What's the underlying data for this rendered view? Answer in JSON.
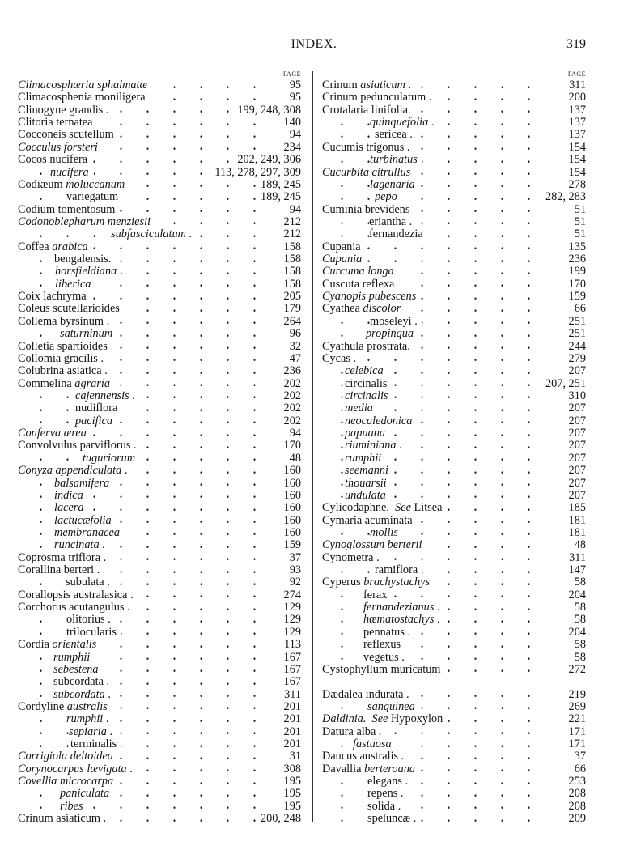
{
  "header": {
    "title": "INDEX.",
    "page_number": "319"
  },
  "columns": [
    {
      "page_label": "PAGE",
      "entries": [
        {
          "s": [
            {
              "t": "Climacosphæria sphalmatæ",
              "i": true
            }
          ],
          "page": "95"
        },
        {
          "s": [
            {
              "t": "Climacosphenia moniligera"
            }
          ],
          "page": "95"
        },
        {
          "s": [
            {
              "t": "Clinogyne grandis ."
            }
          ],
          "page": "199, 248, 308"
        },
        {
          "s": [
            {
              "t": "Clitoria ternatea"
            }
          ],
          "page": "140"
        },
        {
          "s": [
            {
              "t": "Cocconeis scutellum"
            }
          ],
          "page": "94"
        },
        {
          "s": [
            {
              "t": "Cocculus forsteri",
              "i": true
            }
          ],
          "page": "234"
        },
        {
          "s": [
            {
              "t": "Cocos nucifera"
            }
          ],
          "page": "202, 249, 306"
        },
        {
          "s": [
            {
              "t": "nucifera",
              "i": true
            }
          ],
          "page": "113, 278, 297, 309"
        },
        {
          "s": [
            {
              "t": "Codiæum "
            },
            {
              "t": "moluccanum",
              "i": true
            }
          ],
          "page": "189, 245"
        },
        {
          "s": [
            {
              "t": "variegatum"
            }
          ],
          "page": "189, 245"
        },
        {
          "s": [
            {
              "t": "Codium tomentosum"
            }
          ],
          "page": "94"
        },
        {
          "s": [
            {
              "t": "Codonoblepharum menziesii",
              "i": true
            }
          ],
          "page": "212"
        },
        {
          "s": [
            {
              "t": "subfasciculatum",
              "i": true
            },
            {
              "t": " ."
            }
          ],
          "page": "212"
        },
        {
          "s": [
            {
              "t": "Coffea "
            },
            {
              "t": "arabica",
              "i": true
            }
          ],
          "page": "158"
        },
        {
          "s": [
            {
              "t": "bengalensis."
            }
          ],
          "page": "158"
        },
        {
          "s": [
            {
              "t": "horsfieldiana",
              "i": true
            }
          ],
          "page": "158"
        },
        {
          "s": [
            {
              "t": "liberica",
              "i": true
            }
          ],
          "page": "158"
        },
        {
          "s": [
            {
              "t": "Coix lachryma"
            }
          ],
          "page": "205"
        },
        {
          "s": [
            {
              "t": "Coleus scutellarioides"
            }
          ],
          "page": "179"
        },
        {
          "s": [
            {
              "t": "Collema byrsinum ."
            }
          ],
          "page": "264"
        },
        {
          "s": [
            {
              "t": "saturninum",
              "i": true
            }
          ],
          "page": "96"
        },
        {
          "s": [
            {
              "t": "Colletia spartioides"
            }
          ],
          "page": "32"
        },
        {
          "s": [
            {
              "t": "Collomia gracilis ."
            }
          ],
          "page": "47"
        },
        {
          "s": [
            {
              "t": "Colubrina asiatica ."
            }
          ],
          "page": "236"
        },
        {
          "s": [
            {
              "t": "Commelina "
            },
            {
              "t": "agraria",
              "i": true
            }
          ],
          "page": "202"
        },
        {
          "s": [
            {
              "t": "cajennensis",
              "i": true
            },
            {
              "t": " ."
            }
          ],
          "page": "202"
        },
        {
          "s": [
            {
              "t": "nudiflora"
            }
          ],
          "page": "202"
        },
        {
          "s": [
            {
              "t": "pacifica",
              "i": true
            }
          ],
          "page": "202"
        },
        {
          "s": [
            {
              "t": "Conferva ærea",
              "i": true
            }
          ],
          "page": "94"
        },
        {
          "s": [
            {
              "t": "Convolvulus parviflorus ."
            }
          ],
          "page": "170"
        },
        {
          "s": [
            {
              "t": "tuguriorum",
              "i": true
            }
          ],
          "page": "48"
        },
        {
          "s": [
            {
              "t": "Conyza appendiculata",
              "i": true
            },
            {
              "t": " ."
            }
          ],
          "page": "160"
        },
        {
          "s": [
            {
              "t": "balsamifera",
              "i": true
            }
          ],
          "page": "160"
        },
        {
          "s": [
            {
              "t": "indica",
              "i": true
            }
          ],
          "page": "160"
        },
        {
          "s": [
            {
              "t": "lacera",
              "i": true
            }
          ],
          "page": "160"
        },
        {
          "s": [
            {
              "t": "lactucæfolia",
              "i": true
            }
          ],
          "page": "160"
        },
        {
          "s": [
            {
              "t": "membranacea",
              "i": true
            }
          ],
          "page": "160"
        },
        {
          "s": [
            {
              "t": "runcinata",
              "i": true
            },
            {
              "t": " ."
            }
          ],
          "page": "159"
        },
        {
          "s": [
            {
              "t": "Coprosma triflora ."
            }
          ],
          "page": "37"
        },
        {
          "s": [
            {
              "t": "Corallina berteri ."
            }
          ],
          "page": "93"
        },
        {
          "s": [
            {
              "t": "subulata ."
            }
          ],
          "page": "92"
        },
        {
          "s": [
            {
              "t": "Corallopsis australasica ."
            }
          ],
          "page": "274"
        },
        {
          "s": [
            {
              "t": "Corchorus acutangulus ."
            }
          ],
          "page": "129"
        },
        {
          "s": [
            {
              "t": "olitorius ."
            }
          ],
          "page": "129"
        },
        {
          "s": [
            {
              "t": "trilocularis"
            }
          ],
          "page": "129"
        },
        {
          "s": [
            {
              "t": "Cordia "
            },
            {
              "t": "orientalis",
              "i": true
            }
          ],
          "page": "113"
        },
        {
          "s": [
            {
              "t": "rumphii",
              "i": true
            }
          ],
          "page": "167"
        },
        {
          "s": [
            {
              "t": "sebestena",
              "i": true
            }
          ],
          "page": "167"
        },
        {
          "s": [
            {
              "t": "subcordata ."
            }
          ],
          "page": "167"
        },
        {
          "s": [
            {
              "t": "subcordata",
              "i": true
            },
            {
              "t": " ."
            }
          ],
          "page": "311"
        },
        {
          "s": [
            {
              "t": "Cordyline "
            },
            {
              "t": "australis",
              "i": true
            }
          ],
          "page": "201"
        },
        {
          "s": [
            {
              "t": "rumphii",
              "i": true
            },
            {
              "t": " ."
            }
          ],
          "page": "201"
        },
        {
          "s": [
            {
              "t": "sepiaria",
              "i": true
            },
            {
              "t": " ."
            }
          ],
          "page": "201"
        },
        {
          "s": [
            {
              "t": "terminalis"
            }
          ],
          "page": "201"
        },
        {
          "s": [
            {
              "t": "Corrigiola deltoidea",
              "i": true
            }
          ],
          "page": "31"
        },
        {
          "s": [
            {
              "t": "Corynocarpus lævigata",
              "i": true
            },
            {
              "t": " ."
            }
          ],
          "page": "308"
        },
        {
          "s": [
            {
              "t": "Covellia microcarpa",
              "i": true
            }
          ],
          "page": "195"
        },
        {
          "s": [
            {
              "t": "paniculata",
              "i": true
            }
          ],
          "page": "195"
        },
        {
          "s": [
            {
              "t": "ribes",
              "i": true
            }
          ],
          "page": "195"
        },
        {
          "s": [
            {
              "t": "Crinum asiaticum ."
            }
          ],
          "page": "200, 248"
        }
      ]
    },
    {
      "page_label": "PAGE",
      "entries": [
        {
          "s": [
            {
              "t": "Crinum "
            },
            {
              "t": "asiaticum",
              "i": true
            },
            {
              "t": " ."
            }
          ],
          "page": "311"
        },
        {
          "s": [
            {
              "t": "Crinum pedunculatum ."
            }
          ],
          "page": "200"
        },
        {
          "s": [
            {
              "t": "Crotalaria linifolia."
            }
          ],
          "page": "137"
        },
        {
          "s": [
            {
              "t": "quinquefolia",
              "i": true
            },
            {
              "t": " ."
            }
          ],
          "page": "137"
        },
        {
          "s": [
            {
              "t": "sericea ."
            }
          ],
          "page": "137"
        },
        {
          "s": [
            {
              "t": "Cucumis trigonus ."
            }
          ],
          "page": "154"
        },
        {
          "s": [
            {
              "t": "turbinatus",
              "i": true
            }
          ],
          "page": "154"
        },
        {
          "s": [
            {
              "t": "Cucurbita citrullus",
              "i": true
            }
          ],
          "page": "154"
        },
        {
          "s": [
            {
              "t": "lagenaria",
              "i": true
            }
          ],
          "page": "278"
        },
        {
          "s": [
            {
              "t": "pepo",
              "i": true
            }
          ],
          "page": "282, 283"
        },
        {
          "s": [
            {
              "t": "Cuminia brevidens"
            }
          ],
          "page": "51"
        },
        {
          "s": [
            {
              "t": "eriantha ."
            }
          ],
          "page": "51"
        },
        {
          "s": [
            {
              "t": "fernandezia"
            }
          ],
          "page": "51"
        },
        {
          "s": [
            {
              "t": "Cupania"
            }
          ],
          "page": "135"
        },
        {
          "s": [
            {
              "t": "Cupania",
              "i": true
            }
          ],
          "page": "236"
        },
        {
          "s": [
            {
              "t": "Curcuma longa",
              "i": true
            }
          ],
          "page": "199"
        },
        {
          "s": [
            {
              "t": "Cuscuta reflexa"
            }
          ],
          "page": "170"
        },
        {
          "s": [
            {
              "t": "Cyanopis pubescens",
              "i": true
            }
          ],
          "page": "159"
        },
        {
          "s": [
            {
              "t": "Cyathea "
            },
            {
              "t": "discolor",
              "i": true
            }
          ],
          "page": "66"
        },
        {
          "s": [
            {
              "t": "moseleyi ."
            }
          ],
          "page": "251"
        },
        {
          "s": [
            {
              "t": "propinqua",
              "i": true
            }
          ],
          "page": "251"
        },
        {
          "s": [
            {
              "t": "Cyathula prostrata."
            }
          ],
          "page": "244"
        },
        {
          "s": [
            {
              "t": "Cycas ."
            }
          ],
          "page": "279"
        },
        {
          "s": [
            {
              "t": "celebica",
              "i": true
            }
          ],
          "page": "207"
        },
        {
          "s": [
            {
              "t": "circinalis"
            }
          ],
          "page": "207, 251"
        },
        {
          "s": [
            {
              "t": "circinalis",
              "i": true
            }
          ],
          "page": "310"
        },
        {
          "s": [
            {
              "t": "media",
              "i": true
            }
          ],
          "page": "207"
        },
        {
          "s": [
            {
              "t": "neocaledonica",
              "i": true
            }
          ],
          "page": "207"
        },
        {
          "s": [
            {
              "t": "papuana",
              "i": true
            }
          ],
          "page": "207"
        },
        {
          "s": [
            {
              "t": "riuminiana",
              "i": true
            },
            {
              "t": " ."
            }
          ],
          "page": "207"
        },
        {
          "s": [
            {
              "t": "rumphii",
              "i": true
            }
          ],
          "page": "207"
        },
        {
          "s": [
            {
              "t": "seemanni",
              "i": true
            }
          ],
          "page": "207"
        },
        {
          "s": [
            {
              "t": "thouarsii",
              "i": true
            }
          ],
          "page": "207"
        },
        {
          "s": [
            {
              "t": "undulata",
              "i": true
            }
          ],
          "page": "207"
        },
        {
          "s": [
            {
              "t": "Cylicodaphne.  "
            },
            {
              "t": "See",
              "i": true
            },
            {
              "t": " Litsea"
            }
          ],
          "page": "185"
        },
        {
          "s": [
            {
              "t": "Cymaria acuminata"
            }
          ],
          "page": "181"
        },
        {
          "s": [
            {
              "t": "mollis",
              "i": true
            }
          ],
          "page": "181"
        },
        {
          "s": [
            {
              "t": "Cynoglossum berterii",
              "i": true
            }
          ],
          "page": "48"
        },
        {
          "s": [
            {
              "t": "Cynometra ."
            }
          ],
          "page": "311"
        },
        {
          "s": [
            {
              "t": "ramiflora"
            }
          ],
          "page": "147"
        },
        {
          "s": [
            {
              "t": "Cyperus "
            },
            {
              "t": "brachystachys",
              "i": true
            }
          ],
          "page": "58"
        },
        {
          "s": [
            {
              "t": "ferax"
            }
          ],
          "page": "204"
        },
        {
          "s": [
            {
              "t": "fernandezianus",
              "i": true
            },
            {
              "t": " ."
            }
          ],
          "page": "58"
        },
        {
          "s": [
            {
              "t": "hæmatostachys",
              "i": true
            },
            {
              "t": " ."
            }
          ],
          "page": "58"
        },
        {
          "s": [
            {
              "t": "pennatus ."
            }
          ],
          "page": "204"
        },
        {
          "s": [
            {
              "t": "reflexus"
            }
          ],
          "page": "58"
        },
        {
          "s": [
            {
              "t": "vegetus ."
            }
          ],
          "page": "58"
        },
        {
          "s": [
            {
              "t": "Cystophyllum muricatum"
            }
          ],
          "page": "272"
        },
        {
          "blank": true
        },
        {
          "s": [
            {
              "t": "Dædalea indurata ."
            }
          ],
          "page": "219"
        },
        {
          "s": [
            {
              "t": "sanguinea",
              "i": true
            }
          ],
          "page": "269"
        },
        {
          "s": [
            {
              "t": "Daldinia.  See",
              "i": true
            },
            {
              "t": " Hypoxylon"
            }
          ],
          "page": "221"
        },
        {
          "s": [
            {
              "t": "Datura alba ."
            }
          ],
          "page": "171"
        },
        {
          "s": [
            {
              "t": "fastuosa",
              "i": true
            }
          ],
          "page": "171"
        },
        {
          "s": [
            {
              "t": "Daucus australis ."
            }
          ],
          "page": "37"
        },
        {
          "s": [
            {
              "t": "Davallia "
            },
            {
              "t": "berteroana",
              "i": true
            }
          ],
          "page": "66"
        },
        {
          "s": [
            {
              "t": "elegans ."
            }
          ],
          "page": "253"
        },
        {
          "s": [
            {
              "t": "repens ."
            }
          ],
          "page": "208"
        },
        {
          "s": [
            {
              "t": "solida ."
            }
          ],
          "page": "208"
        },
        {
          "s": [
            {
              "t": "speluncæ ."
            }
          ],
          "page": "209"
        }
      ]
    }
  ]
}
